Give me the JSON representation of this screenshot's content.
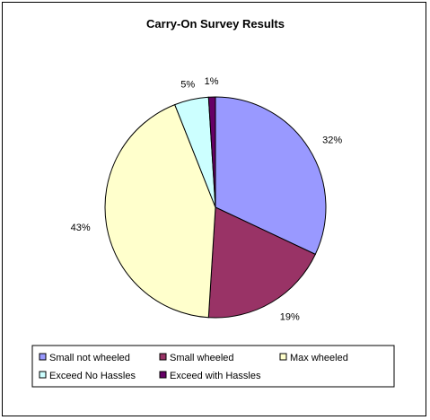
{
  "chart_data": {
    "type": "pie",
    "title": "Carry-On Survey Results",
    "categories": [
      "Small not wheeled",
      "Small wheeled",
      "Max wheeled",
      "Exceed No Hassles",
      "Exceed with Hassles"
    ],
    "values": [
      32,
      19,
      43,
      5,
      1
    ],
    "value_labels": [
      "32%",
      "19%",
      "43%",
      "5%",
      "1%"
    ],
    "colors": [
      "#9999ff",
      "#993366",
      "#ffffcc",
      "#ccffff",
      "#660066"
    ],
    "legend_position": "bottom"
  }
}
